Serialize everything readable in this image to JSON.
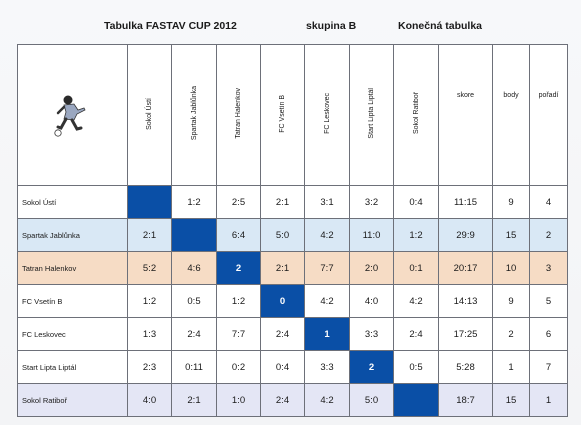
{
  "header": {
    "title": "Tabulka  FASTAV CUP 2012",
    "group": "skupina B",
    "final": "Konečná tabulka"
  },
  "columns": {
    "teams": [
      "Sokol Ústí",
      "Spartak Jablůnka",
      "Tatran Halenkov",
      "FC Vsetín B",
      "FC Leskovec",
      "Start Lipta Liptál",
      "Sokol Ratiboř"
    ],
    "skore": "skore",
    "body": "body",
    "poradi": "pořadí"
  },
  "rows": [
    {
      "team": "Sokol Ústí",
      "cells": [
        "",
        "1:2",
        "2:5",
        "2:1",
        "3:1",
        "3:2",
        "0:4"
      ],
      "skore": "11:15",
      "body": "9",
      "poradi": "4",
      "tint": "white"
    },
    {
      "team": "Spartak Jablůnka",
      "cells": [
        "2:1",
        "",
        "6:4",
        "5:0",
        "4:2",
        "11:0",
        "1:2"
      ],
      "skore": "29:9",
      "body": "15",
      "poradi": "2",
      "tint": "blue"
    },
    {
      "team": "Tatran Halenkov",
      "cells": [
        "5:2",
        "4:6",
        "2",
        "2:1",
        "7:7",
        "2:0",
        "0:1"
      ],
      "skore": "20:17",
      "body": "10",
      "poradi": "3",
      "tint": "peach"
    },
    {
      "team": "FC Vsetín B",
      "cells": [
        "1:2",
        "0:5",
        "1:2",
        "0",
        "4:2",
        "4:0",
        "4:2"
      ],
      "skore": "14:13",
      "body": "9",
      "poradi": "5",
      "tint": "white"
    },
    {
      "team": "FC Leskovec",
      "cells": [
        "1:3",
        "2:4",
        "7:7",
        "2:4",
        "1",
        "3:3",
        "2:4"
      ],
      "skore": "17:25",
      "body": "2",
      "poradi": "6",
      "tint": "white"
    },
    {
      "team": "Start Lipta Liptál",
      "cells": [
        "2:3",
        "0:11",
        "0:2",
        "0:4",
        "3:3",
        "2",
        "0:5"
      ],
      "skore": "5:28",
      "body": "1",
      "poradi": "7",
      "tint": "white"
    },
    {
      "team": "Sokol Ratiboř",
      "cells": [
        "4:0",
        "2:1",
        "1:0",
        "2:4",
        "4:2",
        "5:0",
        ""
      ],
      "skore": "18:7",
      "body": "15",
      "poradi": "1",
      "tint": "lav"
    }
  ],
  "colors": {
    "diagonal": "#0a4fa6",
    "blue_row": "#d9e8f5",
    "peach_row": "#f6dcc5",
    "lavender_row": "#e4e6f5"
  },
  "icons": {
    "corner": "soccer-player-icon"
  }
}
